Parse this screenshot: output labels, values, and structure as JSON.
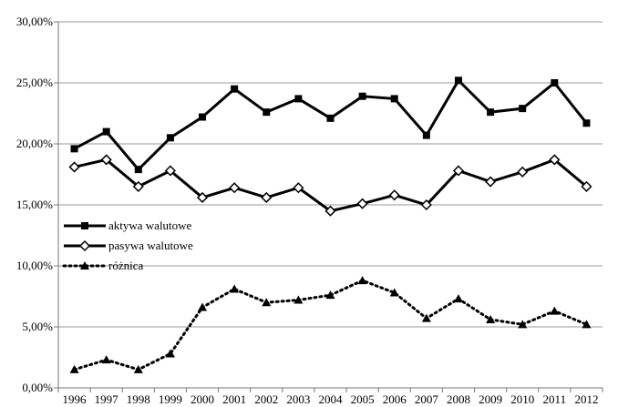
{
  "chart_data": {
    "type": "line",
    "title": "",
    "xlabel": "",
    "ylabel": "",
    "ylim": [
      0,
      30
    ],
    "grid": "horizontal",
    "legend_position": "left-middle",
    "categories": [
      "1996",
      "1997",
      "1998",
      "1999",
      "2000",
      "2001",
      "2002",
      "2003",
      "2004",
      "2005",
      "2006",
      "2007",
      "2008",
      "2009",
      "2010",
      "2011",
      "2012"
    ],
    "y_ticks": [
      0,
      5,
      10,
      15,
      20,
      25,
      30
    ],
    "y_tick_labels": [
      "0,00%",
      "5,00%",
      "10,00%",
      "15,00%",
      "20,00%",
      "25,00%",
      "30,00%"
    ],
    "series": [
      {
        "name": "aktywa walutowe",
        "marker": "square",
        "line": "solid",
        "color": "#000000",
        "values": [
          19.6,
          21.0,
          17.9,
          20.5,
          22.2,
          24.5,
          22.6,
          23.7,
          22.1,
          23.9,
          23.7,
          20.7,
          25.2,
          22.6,
          22.9,
          25.0,
          21.7
        ]
      },
      {
        "name": "pasywa walutowe",
        "marker": "diamond",
        "line": "solid",
        "color": "#000000",
        "values": [
          18.1,
          18.7,
          16.5,
          17.8,
          15.6,
          16.4,
          15.6,
          16.4,
          14.5,
          15.1,
          15.8,
          15.0,
          17.8,
          16.9,
          17.7,
          18.7,
          16.5
        ]
      },
      {
        "name": "różnica",
        "marker": "triangle",
        "line": "dotted",
        "color": "#000000",
        "values": [
          1.5,
          2.3,
          1.5,
          2.8,
          6.6,
          8.1,
          7.0,
          7.2,
          7.6,
          8.8,
          7.8,
          5.7,
          7.3,
          5.6,
          5.2,
          6.3,
          5.2
        ]
      }
    ]
  }
}
